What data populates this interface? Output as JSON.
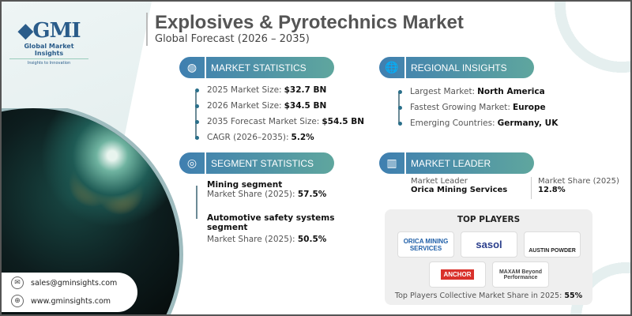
{
  "header": {
    "title": "Explosives & Pyrotechnics Market",
    "subtitle": "Global Forecast (2026 – 2035)"
  },
  "logo": {
    "mark": "GMI",
    "name": "Global Market Insights",
    "tagline": "Insights to Innovation"
  },
  "market_statistics": {
    "heading": "MARKET STATISTICS",
    "icon": "globe-chart-icon",
    "items": [
      {
        "label": "2025 Market Size:",
        "value": "$32.7 BN"
      },
      {
        "label": "2026 Market Size:",
        "value": "$34.5 BN"
      },
      {
        "label": "2035 Forecast Market Size:",
        "value": "$54.5 BN"
      },
      {
        "label": "CAGR (2026–2035):",
        "value": "5.2%"
      }
    ]
  },
  "regional_insights": {
    "heading": "REGIONAL INSIGHTS",
    "icon": "globe-icon",
    "items": [
      {
        "label": "Largest Market:",
        "value": "North America"
      },
      {
        "label": "Fastest Growing Market:",
        "value": "Europe"
      },
      {
        "label": "Emerging Countries:",
        "value": "Germany, UK"
      }
    ]
  },
  "segment_statistics": {
    "heading": "SEGMENT STATISTICS",
    "icon": "target-icon",
    "items": [
      {
        "title": "Mining segment",
        "label": "Market Share (2025):",
        "value": "57.5%"
      },
      {
        "title": "Automotive safety systems segment",
        "label": "Market Share (2025):",
        "value": "50.5%"
      }
    ]
  },
  "market_leader": {
    "heading": "MARKET LEADER",
    "icon": "bar-chart-icon",
    "leader_label": "Market Leader",
    "leader": "Orica Mining Services",
    "share_label": "Market Share (2025)",
    "share": "12.8%"
  },
  "top_players": {
    "heading": "TOP PLAYERS",
    "logos": [
      "ORICA MINING SERVICES",
      "sasol",
      "AUSTIN POWDER",
      "ANCHOR",
      "MAXAM Beyond Performance"
    ],
    "footer_label": "Top Players Collective Market Share in 2025:",
    "footer_value": "55%"
  },
  "contact": {
    "email": "sales@gminsights.com",
    "website": "www.gminsights.com"
  },
  "colors": {
    "accent_blue": "#3f7fb0",
    "accent_teal": "#5fa69e"
  }
}
